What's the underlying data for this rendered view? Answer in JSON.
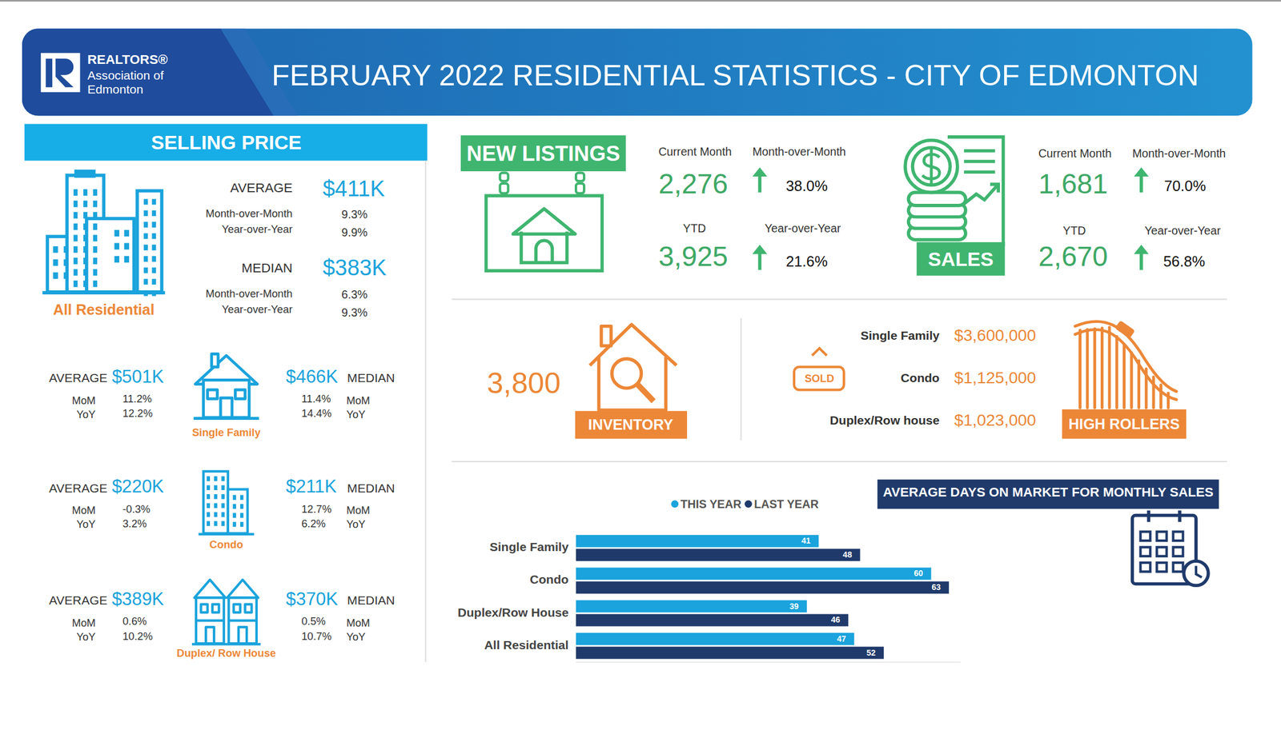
{
  "header": {
    "logo_line1": "REALTORS®",
    "logo_line2": "Association of",
    "logo_line3": "Edmonton",
    "title": "FEBRUARY 2022 RESIDENTIAL STATISTICS - CITY OF EDMONTON"
  },
  "selling_price": {
    "title": "SELLING PRICE",
    "all_residential": {
      "label": "All Residential",
      "average_label": "AVERAGE",
      "average": "$411K",
      "average_mom_label": "Month-over-Month",
      "average_mom": "9.3%",
      "average_yoy_label": "Year-over-Year",
      "average_yoy": "9.9%",
      "median_label": "MEDIAN",
      "median": "$383K",
      "median_mom_label": "Month-over-Month",
      "median_mom": "6.3%",
      "median_yoy_label": "Year-over-Year",
      "median_yoy": "9.3%"
    },
    "types": [
      {
        "label": "Single Family",
        "average_label": "AVERAGE",
        "average": "$501K",
        "average_mom_label": "MoM",
        "average_mom": "11.2%",
        "average_yoy_label": "YoY",
        "average_yoy": "12.2%",
        "median_label": "MEDIAN",
        "median": "$466K",
        "median_mom_label": "MoM",
        "median_mom": "11.4%",
        "median_yoy_label": "YoY",
        "median_yoy": "14.4%"
      },
      {
        "label": "Condo",
        "average_label": "AVERAGE",
        "average": "$220K",
        "average_mom_label": "MoM",
        "average_mom": "-0.3%",
        "average_yoy_label": "YoY",
        "average_yoy": "3.2%",
        "median_label": "MEDIAN",
        "median": "$211K",
        "median_mom_label": "MoM",
        "median_mom": "12.7%",
        "median_yoy_label": "YoY",
        "median_yoy": "6.2%"
      },
      {
        "label": "Duplex/ Row House",
        "average_label": "AVERAGE",
        "average": "$389K",
        "average_mom_label": "MoM",
        "average_mom": "0.6%",
        "average_yoy_label": "YoY",
        "average_yoy": "10.2%",
        "median_label": "MEDIAN",
        "median": "$370K",
        "median_mom_label": "MoM",
        "median_mom": "0.5%",
        "median_yoy_label": "YoY",
        "median_yoy": "10.7%"
      }
    ]
  },
  "new_listings": {
    "title": "NEW  LISTINGS",
    "current_month_label": "Current Month",
    "current_month": "2,276",
    "mom_label": "Month-over-Month",
    "mom": "38.0%",
    "ytd_label": "YTD",
    "ytd": "3,925",
    "yoy_label": "Year-over-Year",
    "yoy": "21.6%"
  },
  "sales": {
    "title": "SALES",
    "current_month_label": "Current Month",
    "current_month": "1,681",
    "mom_label": "Month-over-Month",
    "mom": "70.0%",
    "ytd_label": "YTD",
    "ytd": "2,670",
    "yoy_label": "Year-over-Year",
    "yoy": "56.8%"
  },
  "inventory": {
    "title": "INVENTORY",
    "value": "3,800"
  },
  "high_rollers": {
    "title": "HIGH ROLLERS",
    "sign": "SOLD",
    "items": [
      {
        "label": "Single Family",
        "value": "$3,600,000"
      },
      {
        "label": "Condo",
        "value": "$1,125,000"
      },
      {
        "label": "Duplex/Row house",
        "value": "$1,023,000"
      }
    ]
  },
  "chart_data": {
    "type": "bar",
    "orientation": "horizontal",
    "title": "AVERAGE DAYS ON MARKET FOR MONTHLY SALES",
    "categories": [
      "Single Family",
      "Condo",
      "Duplex/Row House",
      "All Residential"
    ],
    "series": [
      {
        "name": "THIS YEAR",
        "color": "#1aa3dc",
        "values": [
          41,
          60,
          39,
          47
        ]
      },
      {
        "name": "LAST YEAR",
        "color": "#1f3a6b",
        "values": [
          48,
          63,
          46,
          52
        ]
      }
    ],
    "xlim": [
      0,
      65
    ],
    "xticks": [],
    "data_labels": true,
    "tick_labels": "y",
    "legend": "top",
    "grid": false
  }
}
